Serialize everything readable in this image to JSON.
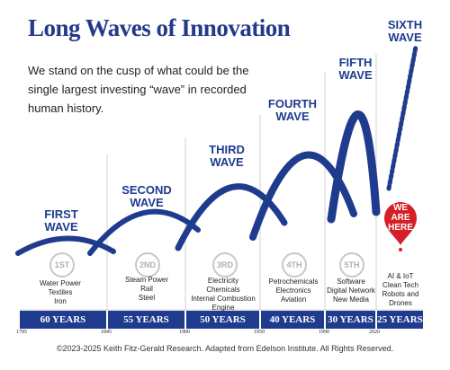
{
  "title": "Long Waves of Innovation",
  "intro": "We stand on the cusp of what could be the single largest investing “wave” in recorded human history.",
  "waves": [
    {
      "label_line1": "FIRST",
      "label_line2": "WAVE",
      "badge": "1ST",
      "items": [
        "Water Power",
        "Textiles",
        "Iron"
      ],
      "duration": "60 YEARS"
    },
    {
      "label_line1": "SECOND",
      "label_line2": "WAVE",
      "badge": "2ND",
      "items": [
        "Steam Power",
        "Rail",
        "Steel"
      ],
      "duration": "55 YEARS"
    },
    {
      "label_line1": "THIRD",
      "label_line2": "WAVE",
      "badge": "3RD",
      "items": [
        "Electricity",
        "Chemicals",
        "Internal Combustion",
        "Engine"
      ],
      "duration": "50 YEARS"
    },
    {
      "label_line1": "FOURTH",
      "label_line2": "WAVE",
      "badge": "4TH",
      "items": [
        "Petrochemicals",
        "Electronics",
        "Aviation"
      ],
      "duration": "40 YEARS"
    },
    {
      "label_line1": "FIFTH",
      "label_line2": "WAVE",
      "badge": "5TH",
      "items": [
        "Software",
        "Digital Network",
        "New Media"
      ],
      "duration": "30 YEARS"
    },
    {
      "label_line1": "SIXTH",
      "label_line2": "WAVE",
      "badge": "",
      "items": [
        "AI & IoT",
        "Clean Tech",
        "Robots and",
        "Drones"
      ],
      "duration": "25 YEARS"
    }
  ],
  "pin": {
    "line1": "WE",
    "line2": "ARE",
    "line3": "HERE",
    "color": "#d62027"
  },
  "years": [
    "1785",
    "1845",
    "1900",
    "1950",
    "1990",
    "2020"
  ],
  "copyright": "©2023-2025 Keith Fitz-Gerald Research. Adapted from Edelson Institute. All Rights Reserved.",
  "colors": {
    "navy": "#1f3b8d",
    "title": "#233a8a",
    "red": "#d62027"
  }
}
